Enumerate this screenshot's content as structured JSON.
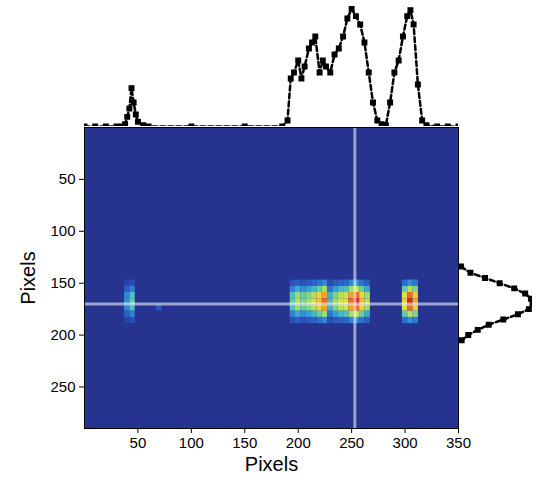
{
  "chart_data": {
    "type": "heatmap",
    "xlabel": "Pixels",
    "ylabel": "Pixels",
    "xlim": [
      0,
      350
    ],
    "xticks": [
      50,
      100,
      150,
      200,
      250,
      300,
      350
    ],
    "ylim": [
      0,
      290
    ],
    "yticks": [
      50,
      100,
      150,
      200,
      250
    ],
    "zlim": [
      0,
      1
    ],
    "cells": {
      "x": [
        40,
        45,
        70,
        195,
        200,
        205,
        210,
        215,
        220,
        225,
        230,
        235,
        240,
        245,
        250,
        255,
        260,
        265,
        300,
        305,
        310
      ],
      "y": [
        150,
        156,
        162,
        168,
        174,
        180,
        186
      ],
      "values": [
        [
          0.06,
          0.1,
          0,
          0.1,
          0.14,
          0.11,
          0.13,
          0.15,
          0.19,
          0.23,
          0.09,
          0.13,
          0.15,
          0.16,
          0.23,
          0.25,
          0.19,
          0.14,
          0.18,
          0.25,
          0.2
        ],
        [
          0.14,
          0.22,
          0,
          0.22,
          0.3,
          0.25,
          0.28,
          0.33,
          0.41,
          0.5,
          0.19,
          0.28,
          0.33,
          0.36,
          0.5,
          0.55,
          0.41,
          0.3,
          0.39,
          0.55,
          0.44
        ],
        [
          0.23,
          0.36,
          0,
          0.36,
          0.5,
          0.41,
          0.45,
          0.54,
          0.68,
          0.81,
          0.32,
          0.45,
          0.54,
          0.59,
          0.81,
          0.9,
          0.68,
          0.5,
          0.63,
          0.9,
          0.72
        ],
        [
          0.25,
          0.4,
          0,
          0.4,
          0.55,
          0.45,
          0.5,
          0.6,
          0.75,
          0.9,
          0.35,
          0.5,
          0.6,
          0.65,
          0.9,
          1,
          0.75,
          0.55,
          0.7,
          1,
          0.8
        ],
        [
          0.23,
          0.36,
          0.12,
          0.36,
          0.5,
          0.41,
          0.45,
          0.54,
          0.68,
          0.81,
          0.32,
          0.45,
          0.54,
          0.59,
          0.81,
          0.9,
          0.68,
          0.5,
          0.63,
          0.9,
          0.72
        ],
        [
          0.14,
          0.22,
          0,
          0.22,
          0.3,
          0.25,
          0.28,
          0.33,
          0.41,
          0.5,
          0.19,
          0.28,
          0.33,
          0.36,
          0.5,
          0.55,
          0.41,
          0.3,
          0.39,
          0.55,
          0.44
        ],
        [
          0.06,
          0.1,
          0,
          0.1,
          0.14,
          0.11,
          0.13,
          0.15,
          0.19,
          0.23,
          0.09,
          0.13,
          0.15,
          0.16,
          0.23,
          0.25,
          0.19,
          0.14,
          0.18,
          0.25,
          0.2
        ]
      ]
    },
    "crosshair": {
      "x": 253,
      "y": 170
    },
    "x_profile": {
      "color": "#000000",
      "marker": "square",
      "line_style": "dashed",
      "vlim": [
        0,
        1
      ],
      "x": [
        0,
        10,
        20,
        30,
        35,
        38,
        40,
        42,
        44,
        46,
        48,
        50,
        55,
        60,
        100,
        150,
        185,
        190,
        193,
        196,
        200,
        203,
        206,
        210,
        213,
        216,
        220,
        223,
        226,
        230,
        234,
        238,
        242,
        246,
        250,
        254,
        258,
        262,
        266,
        270,
        274,
        278,
        282,
        286,
        290,
        294,
        298,
        302,
        305,
        308,
        312,
        316,
        320,
        330,
        340,
        350
      ],
      "values": [
        0,
        0,
        0,
        0,
        0,
        0.02,
        0.08,
        0.15,
        0.32,
        0.2,
        0.1,
        0.04,
        0.01,
        0,
        0,
        0,
        0,
        0.05,
        0.4,
        0.45,
        0.55,
        0.4,
        0.5,
        0.65,
        0.7,
        0.75,
        0.45,
        0.55,
        0.5,
        0.45,
        0.6,
        0.65,
        0.75,
        0.9,
        0.98,
        0.92,
        0.85,
        0.7,
        0.45,
        0.2,
        0.05,
        0.02,
        0.01,
        0.2,
        0.45,
        0.55,
        0.75,
        0.92,
        0.97,
        0.85,
        0.35,
        0.05,
        0.01,
        0,
        0,
        0
      ]
    },
    "y_profile": {
      "color": "#000000",
      "marker": "square",
      "line_style": "dashed",
      "vlim": [
        0,
        1
      ],
      "y": [
        134,
        140,
        145,
        150,
        155,
        160,
        165,
        170,
        175,
        180,
        185,
        190,
        195,
        200,
        205
      ],
      "values": [
        0.02,
        0.15,
        0.35,
        0.55,
        0.75,
        0.9,
        0.98,
        1,
        0.95,
        0.8,
        0.6,
        0.4,
        0.25,
        0.12,
        0.03
      ]
    }
  }
}
